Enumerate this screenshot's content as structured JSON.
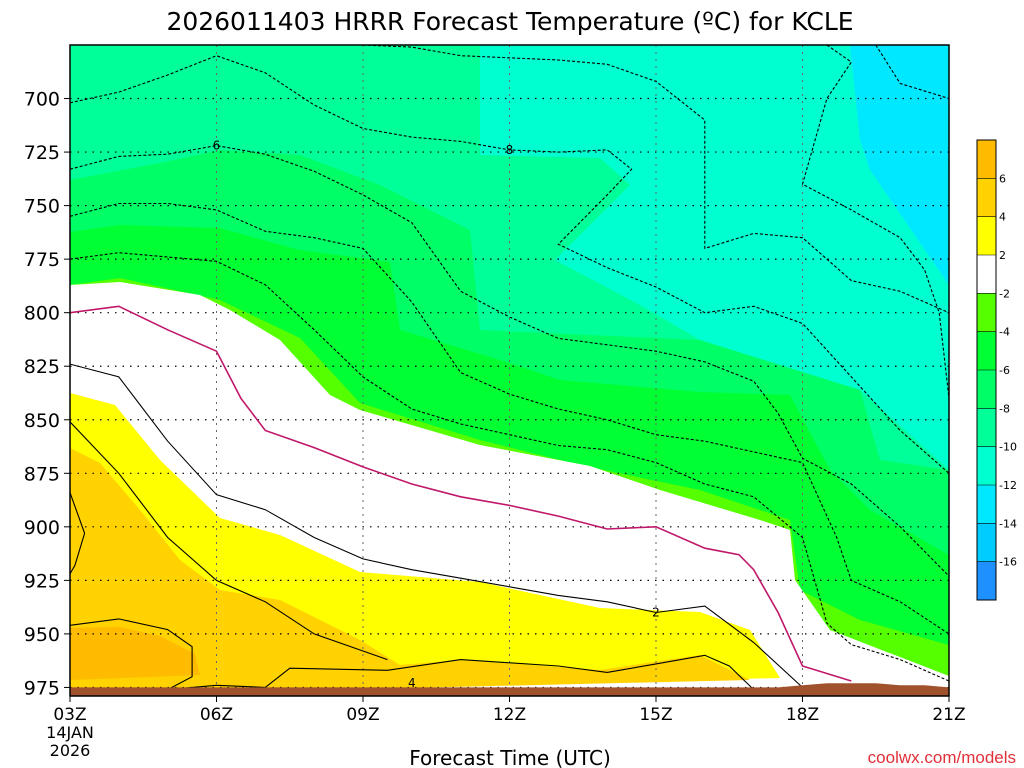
{
  "chart_data": {
    "type": "contour",
    "title": "2026011403 HRRR Forecast Temperature (ºC) for KCLE",
    "xlabel": "Forecast Time (UTC)",
    "ylabel": "",
    "credit": "coolwx.com/models",
    "x_ticks": [
      "03Z",
      "06Z",
      "09Z",
      "12Z",
      "15Z",
      "18Z",
      "21Z"
    ],
    "x_hours": [
      3,
      6,
      9,
      12,
      15,
      18,
      21
    ],
    "date_label": [
      "14JAN",
      "2026"
    ],
    "xlim": [
      3,
      21
    ],
    "y_ticks": [
      700,
      725,
      750,
      775,
      800,
      825,
      850,
      875,
      900,
      925,
      950,
      975
    ],
    "ylim": [
      675,
      979
    ],
    "ground_top_hPa": [
      975,
      975,
      975,
      975,
      975,
      975,
      975,
      975,
      975,
      975,
      975,
      975,
      975,
      975,
      975,
      975,
      974,
      973,
      973,
      973,
      974,
      974,
      975,
      975
    ],
    "ground_hours": [
      3,
      4,
      5,
      6,
      7,
      8,
      9,
      10,
      11,
      12,
      13,
      14,
      15,
      16,
      17,
      17.5,
      18,
      18.5,
      19,
      19.5,
      20,
      20.5,
      21,
      21
    ],
    "contour_levels": [
      6,
      4,
      2,
      0,
      -2,
      -4,
      -6,
      -8,
      -10,
      -12,
      -14,
      -16
    ],
    "contours": [
      {
        "level": 4,
        "style": "solid",
        "color": "#000000",
        "label": "4",
        "label_at": [
          10,
          973
        ],
        "points": [
          [
            3,
            946
          ],
          [
            4,
            943
          ],
          [
            5,
            948
          ],
          [
            5.5,
            956
          ],
          [
            5.5,
            970
          ],
          [
            5,
            976
          ],
          [
            6,
            974
          ],
          [
            7,
            975
          ],
          [
            7.5,
            966
          ],
          [
            9.5,
            967
          ],
          [
            11,
            962
          ],
          [
            13,
            965
          ],
          [
            14,
            968
          ],
          [
            15,
            964
          ],
          [
            16,
            960
          ],
          [
            16.5,
            965
          ],
          [
            17,
            976
          ]
        ]
      },
      {
        "level": 3,
        "style": "solid",
        "color": "#000000",
        "points": [
          [
            3,
            851
          ],
          [
            4,
            875
          ],
          [
            5,
            905
          ],
          [
            6,
            925
          ],
          [
            7,
            935
          ],
          [
            8,
            950
          ],
          [
            9,
            958
          ],
          [
            9.5,
            962
          ]
        ]
      },
      {
        "level": 5,
        "style": "solid",
        "color": "#000000",
        "points": [
          [
            3,
            884
          ],
          [
            3.3,
            903
          ],
          [
            3.1,
            918
          ],
          [
            3,
            922
          ]
        ]
      },
      {
        "level": 2,
        "style": "solid",
        "color": "#000000",
        "label": "2",
        "label_at": [
          15,
          940
        ],
        "points": [
          [
            3,
            824
          ],
          [
            4,
            830
          ],
          [
            5,
            860
          ],
          [
            6,
            885
          ],
          [
            7,
            892
          ],
          [
            8,
            905
          ],
          [
            9,
            915
          ],
          [
            10,
            920
          ],
          [
            11,
            924
          ],
          [
            12,
            928
          ],
          [
            13,
            932
          ],
          [
            14,
            935
          ],
          [
            15,
            940
          ],
          [
            16,
            937
          ],
          [
            17,
            954
          ],
          [
            18,
            975
          ]
        ]
      },
      {
        "level": 0,
        "style": "solid",
        "color": "#c0176a",
        "points": [
          [
            3,
            800
          ],
          [
            4,
            797
          ],
          [
            5,
            808
          ],
          [
            6,
            818
          ],
          [
            6.5,
            840
          ],
          [
            7,
            855
          ],
          [
            8,
            863
          ],
          [
            9,
            872
          ],
          [
            10,
            880
          ],
          [
            11,
            886
          ],
          [
            12,
            890
          ],
          [
            13,
            895
          ],
          [
            14,
            901
          ],
          [
            15,
            900
          ],
          [
            16,
            910
          ],
          [
            16.7,
            913
          ],
          [
            17,
            920
          ],
          [
            17.5,
            940
          ],
          [
            18,
            965
          ],
          [
            19,
            972
          ]
        ]
      },
      {
        "level": -2,
        "style": "dashed",
        "color": "#000000",
        "points": [
          [
            3,
            775
          ],
          [
            4,
            772
          ],
          [
            5,
            774
          ],
          [
            6,
            776
          ],
          [
            7,
            787
          ],
          [
            8,
            808
          ],
          [
            9,
            830
          ],
          [
            10,
            845
          ],
          [
            11,
            852
          ],
          [
            12,
            857
          ],
          [
            13,
            862
          ],
          [
            14,
            864
          ],
          [
            15,
            870
          ],
          [
            16,
            880
          ],
          [
            17,
            886
          ],
          [
            18,
            905
          ],
          [
            18.5,
            945
          ],
          [
            19,
            955
          ],
          [
            20,
            962
          ],
          [
            21,
            972
          ]
        ]
      },
      {
        "level": -4,
        "style": "dashed",
        "color": "#000000",
        "points": [
          [
            3,
            755
          ],
          [
            4,
            749
          ],
          [
            5,
            749
          ],
          [
            6,
            752
          ],
          [
            7,
            762
          ],
          [
            8,
            765
          ],
          [
            9,
            770
          ],
          [
            10,
            795
          ],
          [
            11,
            828
          ],
          [
            12,
            838
          ],
          [
            13,
            845
          ],
          [
            14,
            850
          ],
          [
            15,
            857
          ],
          [
            16,
            860
          ],
          [
            17,
            865
          ],
          [
            18,
            870
          ],
          [
            18.7,
            905
          ],
          [
            19,
            925
          ],
          [
            20,
            935
          ],
          [
            21,
            950
          ]
        ]
      },
      {
        "level": -6,
        "style": "dashed",
        "color": "#000000",
        "label": "6",
        "label_at": [
          6,
          722
        ],
        "points": [
          [
            3,
            733
          ],
          [
            4,
            727
          ],
          [
            5,
            726
          ],
          [
            6,
            722
          ],
          [
            7,
            726
          ],
          [
            8,
            734
          ],
          [
            9,
            745
          ],
          [
            10,
            758
          ],
          [
            11,
            790
          ],
          [
            12,
            802
          ],
          [
            13,
            812
          ],
          [
            14,
            815
          ],
          [
            15,
            818
          ],
          [
            16,
            823
          ],
          [
            17,
            832
          ],
          [
            17.5,
            847
          ],
          [
            18,
            868
          ],
          [
            19,
            880
          ],
          [
            20,
            900
          ],
          [
            21,
            923
          ]
        ]
      },
      {
        "level": -8,
        "style": "dashed",
        "color": "#000000",
        "label": "8",
        "label_at": [
          12,
          724
        ],
        "points": [
          [
            3,
            702
          ],
          [
            4,
            697
          ],
          [
            5,
            689
          ],
          [
            6,
            680
          ],
          [
            7,
            688
          ],
          [
            8,
            703
          ],
          [
            9,
            714
          ],
          [
            10,
            718
          ],
          [
            11,
            720
          ],
          [
            12,
            724
          ],
          [
            13,
            725
          ],
          [
            14,
            724
          ],
          [
            14.5,
            733
          ],
          [
            14,
            745
          ],
          [
            13,
            768
          ],
          [
            14,
            779
          ],
          [
            15,
            788
          ],
          [
            16,
            800
          ],
          [
            17,
            797
          ],
          [
            18,
            805
          ],
          [
            19,
            830
          ],
          [
            20,
            855
          ],
          [
            21,
            875
          ]
        ]
      },
      {
        "level": -10,
        "style": "dashed",
        "color": "#000000",
        "points": [
          [
            9,
            675
          ],
          [
            10,
            676
          ],
          [
            11,
            680
          ],
          [
            12,
            681
          ],
          [
            13,
            682
          ],
          [
            14,
            684
          ],
          [
            15,
            692
          ],
          [
            16,
            710
          ],
          [
            16,
            770
          ],
          [
            17,
            763
          ],
          [
            18,
            765
          ],
          [
            19,
            785
          ],
          [
            20,
            790
          ],
          [
            21,
            800
          ]
        ]
      },
      {
        "level": -12,
        "style": "dashed",
        "color": "#000000",
        "points": [
          [
            18.5,
            675
          ],
          [
            19,
            683
          ],
          [
            18.5,
            700
          ],
          [
            18,
            740
          ],
          [
            19,
            752
          ],
          [
            20,
            765
          ],
          [
            20.5,
            780
          ],
          [
            20.8,
            800
          ],
          [
            21,
            840
          ]
        ]
      },
      {
        "level": -14,
        "style": "dashed",
        "color": "#000000",
        "points": [
          [
            19.5,
            675
          ],
          [
            20,
            693
          ],
          [
            21,
            700
          ],
          [
            21,
            735
          ]
        ]
      }
    ],
    "colorbar": {
      "bins": [
        {
          "range": [
            6,
            8
          ],
          "color": "#ffbb00"
        },
        {
          "range": [
            4,
            6
          ],
          "color": "#ffd200"
        },
        {
          "range": [
            2,
            4
          ],
          "color": "#ffff00"
        },
        {
          "range": [
            -2,
            2
          ],
          "color": "#ffffff"
        },
        {
          "range": [
            -4,
            -2
          ],
          "color": "#55ff00"
        },
        {
          "range": [
            -6,
            -4
          ],
          "color": "#00ff33"
        },
        {
          "range": [
            -8,
            -6
          ],
          "color": "#00ff66"
        },
        {
          "range": [
            -10,
            -8
          ],
          "color": "#00ff99"
        },
        {
          "range": [
            -12,
            -10
          ],
          "color": "#00ffd0"
        },
        {
          "range": [
            -14,
            -12
          ],
          "color": "#00e8ff"
        },
        {
          "range": [
            -16,
            -14
          ],
          "color": "#00ccff"
        },
        {
          "range": [
            -18,
            -16
          ],
          "color": "#1e90ff"
        }
      ],
      "labels": [
        "6",
        "4",
        "2",
        "-2",
        "-4",
        "-6",
        "-8",
        "-10",
        "-12",
        "-14",
        "-16"
      ]
    },
    "ground_color": "#a0522d",
    "grid": true
  }
}
